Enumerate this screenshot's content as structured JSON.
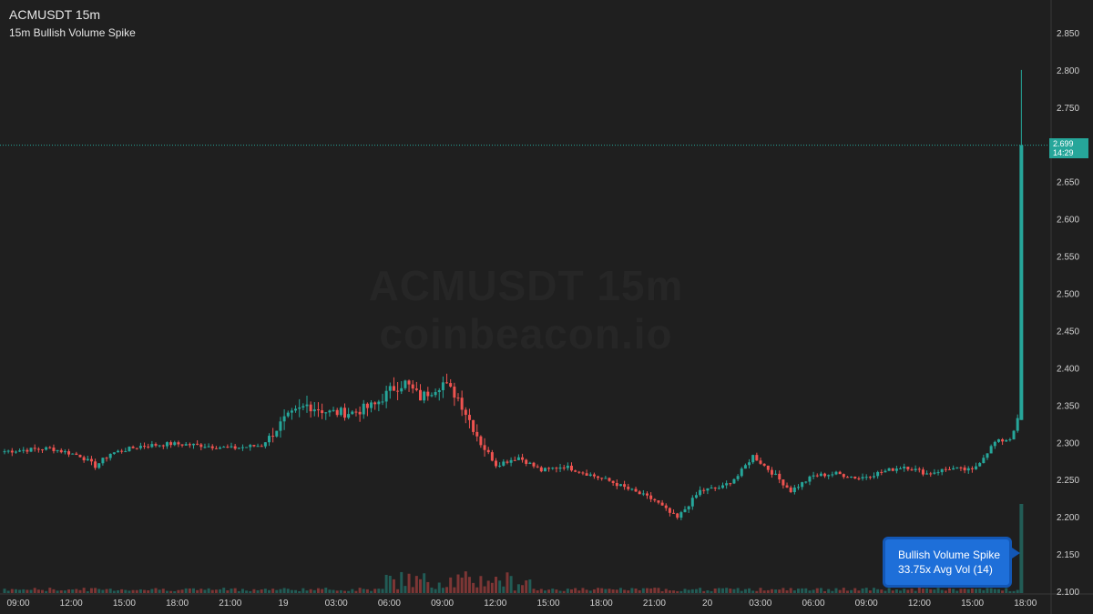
{
  "header": {
    "title": "ACMUSDT 15m",
    "subtitle": "15m Bullish Volume Spike"
  },
  "watermark": {
    "line1": "ACMUSDT 15m",
    "line2": "coinbeacon.io"
  },
  "last_price": {
    "price": "2.699",
    "countdown": "14:29"
  },
  "callout": {
    "line1": "Bullish Volume Spike",
    "line2": "33.75x Avg Vol (14)"
  },
  "colors": {
    "up": "#26a69a",
    "down": "#ef5350",
    "background": "#1f1f1f",
    "callout": "#1e6fd9"
  },
  "chart_data": {
    "type": "candlestick",
    "title": "ACMUSDT 15m",
    "ylim": [
      2.1,
      2.86
    ],
    "y_ticks": [
      "2.850",
      "2.800",
      "2.750",
      "2.700",
      "2.650",
      "2.600",
      "2.550",
      "2.500",
      "2.450",
      "2.400",
      "2.350",
      "2.300",
      "2.250",
      "2.200",
      "2.150",
      "2.100"
    ],
    "x_ticks": [
      "09:00",
      "12:00",
      "15:00",
      "18:00",
      "21:00",
      "19",
      "03:00",
      "06:00",
      "09:00",
      "12:00",
      "15:00",
      "18:00",
      "21:00",
      "20",
      "03:00",
      "06:00",
      "09:00",
      "12:00",
      "15:00",
      "18:00"
    ],
    "price_waypoints": [
      [
        0,
        2.288
      ],
      [
        12,
        2.292
      ],
      [
        20,
        2.282
      ],
      [
        24,
        2.268
      ],
      [
        28,
        2.285
      ],
      [
        36,
        2.295
      ],
      [
        44,
        2.298
      ],
      [
        52,
        2.296
      ],
      [
        60,
        2.292
      ],
      [
        68,
        2.296
      ],
      [
        74,
        2.33
      ],
      [
        80,
        2.35
      ],
      [
        86,
        2.34
      ],
      [
        92,
        2.34
      ],
      [
        98,
        2.35
      ],
      [
        102,
        2.37
      ],
      [
        106,
        2.38
      ],
      [
        110,
        2.36
      ],
      [
        116,
        2.38
      ],
      [
        120,
        2.36
      ],
      [
        122,
        2.34
      ],
      [
        126,
        2.3
      ],
      [
        130,
        2.27
      ],
      [
        136,
        2.28
      ],
      [
        142,
        2.262
      ],
      [
        148,
        2.268
      ],
      [
        154,
        2.258
      ],
      [
        160,
        2.248
      ],
      [
        166,
        2.235
      ],
      [
        172,
        2.222
      ],
      [
        176,
        2.205
      ],
      [
        178,
        2.198
      ],
      [
        184,
        2.235
      ],
      [
        190,
        2.24
      ],
      [
        194,
        2.255
      ],
      [
        198,
        2.282
      ],
      [
        204,
        2.255
      ],
      [
        208,
        2.235
      ],
      [
        214,
        2.255
      ],
      [
        220,
        2.258
      ],
      [
        226,
        2.252
      ],
      [
        232,
        2.26
      ],
      [
        238,
        2.268
      ],
      [
        244,
        2.258
      ],
      [
        250,
        2.265
      ],
      [
        256,
        2.262
      ],
      [
        262,
        2.3
      ],
      [
        266,
        2.305
      ],
      [
        268,
        2.33
      ],
      [
        269,
        2.699
      ]
    ],
    "spike_candle": {
      "open": 2.33,
      "high": 2.8,
      "low": 2.33,
      "close": 2.699
    },
    "volume_spike_ratio": "33.75x"
  }
}
